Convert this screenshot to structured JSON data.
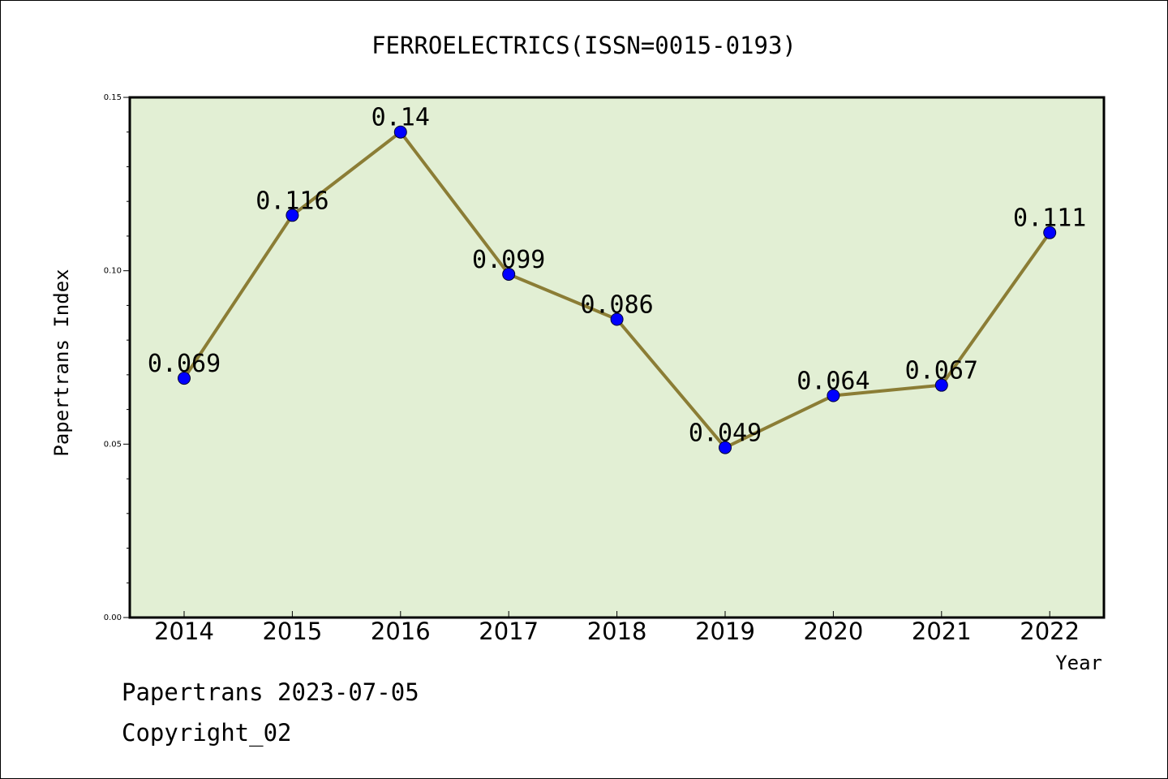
{
  "chart_data": {
    "type": "line",
    "title": "FERROELECTRICS(ISSN=0015-0193)",
    "xlabel": "Year",
    "ylabel": "Papertrans Index",
    "categories": [
      "2014",
      "2015",
      "2016",
      "2017",
      "2018",
      "2019",
      "2020",
      "2021",
      "2022"
    ],
    "values": [
      0.069,
      0.116,
      0.14,
      0.099,
      0.086,
      0.049,
      0.064,
      0.067,
      0.111
    ],
    "data_labels": [
      "0.069",
      "0.116",
      "0.14",
      "0.099",
      "0.086",
      "0.049",
      "0.064",
      "0.067",
      "0.111"
    ],
    "ylim": [
      0,
      0.15
    ],
    "yticks": [
      "0.00",
      "0.05",
      "0.10",
      "0.15"
    ],
    "grid": false,
    "line_color": "#8B7D35",
    "marker_color": "#0000FF",
    "plot_background": "#E2EFD4"
  },
  "footer": {
    "line1": "Papertrans 2023-07-05",
    "line2": "Copyright_02"
  }
}
